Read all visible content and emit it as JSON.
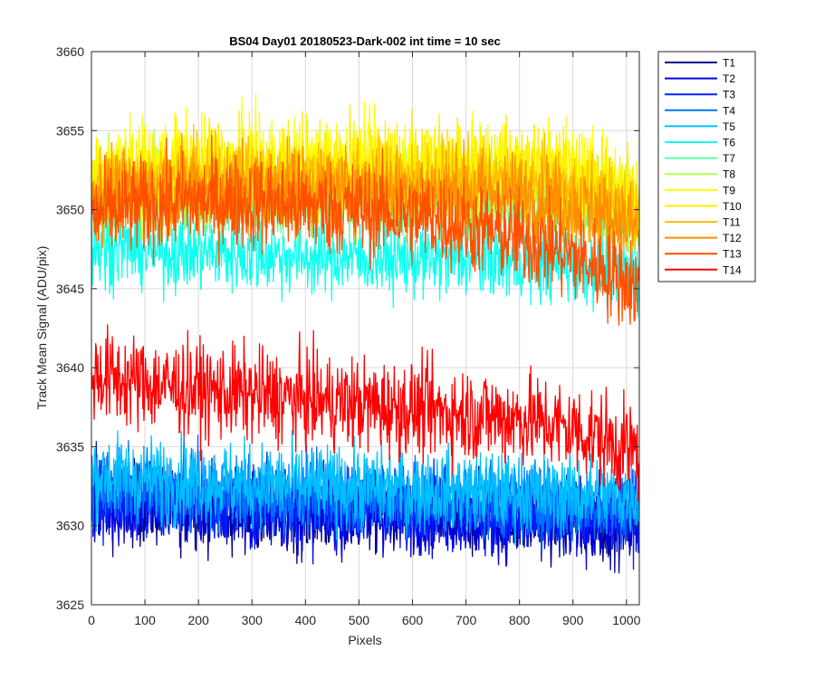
{
  "chart_data": {
    "type": "line",
    "title": "BS04 Day01 20180523-Dark-002 int time = 10 sec",
    "xlabel": "Pixels",
    "ylabel": "Track Mean Signal (ADU/pix)",
    "xlim": [
      0,
      1024
    ],
    "ylim": [
      3625,
      3660
    ],
    "xticks": [
      0,
      100,
      200,
      300,
      400,
      500,
      600,
      700,
      800,
      900,
      1000
    ],
    "yticks": [
      3625,
      3630,
      3635,
      3640,
      3645,
      3650,
      3655,
      3660
    ],
    "grid": true,
    "legend_position": "outside-top-right",
    "x_points": [
      0,
      50,
      100,
      150,
      200,
      250,
      300,
      350,
      400,
      450,
      500,
      550,
      600,
      650,
      700,
      750,
      800,
      850,
      900,
      950,
      1000,
      1024
    ],
    "series": [
      {
        "name": "T1",
        "color": "#00008F",
        "mean": [
          3631.5,
          3631.4,
          3631.3,
          3631.2,
          3631.2,
          3631.0,
          3630.9,
          3630.9,
          3630.8,
          3630.8,
          3630.8,
          3630.8,
          3630.7,
          3630.6,
          3630.6,
          3630.5,
          3630.5,
          3630.4,
          3630.3,
          3630.3,
          3630.2,
          3630.2
        ],
        "noise": 1.3
      },
      {
        "name": "T2",
        "color": "#0000DF",
        "mean": [
          3631.2,
          3631.1,
          3631.1,
          3631.0,
          3631.0,
          3630.9,
          3630.8,
          3630.8,
          3630.7,
          3630.7,
          3630.7,
          3630.6,
          3630.6,
          3630.5,
          3630.5,
          3630.4,
          3630.3,
          3630.3,
          3630.2,
          3630.2,
          3630.1,
          3630.1
        ],
        "noise": 1.2
      },
      {
        "name": "T3",
        "color": "#0020FF",
        "mean": [
          3632.0,
          3631.9,
          3631.8,
          3631.7,
          3631.6,
          3631.6,
          3631.5,
          3631.4,
          3631.4,
          3631.3,
          3631.3,
          3631.2,
          3631.2,
          3631.1,
          3631.1,
          3631.0,
          3631.0,
          3630.9,
          3630.9,
          3630.8,
          3630.8,
          3630.8
        ],
        "noise": 1.2
      },
      {
        "name": "T4",
        "color": "#0070FF",
        "mean": [
          3632.6,
          3632.5,
          3632.4,
          3632.3,
          3632.2,
          3632.1,
          3632.0,
          3632.0,
          3631.9,
          3631.8,
          3631.8,
          3631.7,
          3631.7,
          3631.6,
          3631.6,
          3631.5,
          3631.5,
          3631.4,
          3631.3,
          3631.3,
          3631.2,
          3631.2
        ],
        "noise": 1.2
      },
      {
        "name": "T5",
        "color": "#00BFFF",
        "mean": [
          3633.2,
          3633.1,
          3633.0,
          3632.9,
          3632.8,
          3632.7,
          3632.6,
          3632.6,
          3632.5,
          3632.5,
          3632.4,
          3632.4,
          3632.3,
          3632.3,
          3632.2,
          3632.2,
          3632.1,
          3632.0,
          3632.0,
          3631.9,
          3631.9,
          3631.8
        ],
        "noise": 1.3
      },
      {
        "name": "T6",
        "color": "#10FFEF",
        "mean": [
          3647.6,
          3647.5,
          3647.4,
          3647.3,
          3647.3,
          3647.2,
          3647.1,
          3647.1,
          3647.0,
          3647.0,
          3647.0,
          3646.9,
          3646.9,
          3646.8,
          3646.8,
          3646.8,
          3646.7,
          3646.6,
          3646.5,
          3646.3,
          3646.0,
          3645.8
        ],
        "noise": 1.2
      },
      {
        "name": "T7",
        "color": "#60FF9F",
        "mean": [
          3650.5,
          3650.6,
          3650.6,
          3650.7,
          3650.7,
          3650.7,
          3650.7,
          3650.7,
          3650.7,
          3650.6,
          3650.6,
          3650.6,
          3650.6,
          3650.6,
          3650.6,
          3650.5,
          3650.5,
          3650.3,
          3650.1,
          3649.8,
          3649.4,
          3649.2
        ],
        "noise": 1.2
      },
      {
        "name": "T8",
        "color": "#AFFF50",
        "mean": [
          3651.2,
          3651.3,
          3651.4,
          3651.5,
          3651.5,
          3651.5,
          3651.5,
          3651.5,
          3651.4,
          3651.4,
          3651.4,
          3651.3,
          3651.3,
          3651.3,
          3651.3,
          3651.3,
          3651.2,
          3651.0,
          3650.8,
          3650.5,
          3650.0,
          3649.8
        ],
        "noise": 1.3
      },
      {
        "name": "T9",
        "color": "#FFFF00",
        "mean": [
          3652.2,
          3652.4,
          3652.6,
          3652.8,
          3652.9,
          3652.9,
          3652.9,
          3652.9,
          3652.9,
          3652.8,
          3652.8,
          3652.8,
          3652.8,
          3652.8,
          3652.8,
          3652.8,
          3652.7,
          3652.5,
          3652.2,
          3651.8,
          3651.2,
          3650.8
        ],
        "noise": 1.5
      },
      {
        "name": "T10",
        "color": "#FFEF00",
        "mean": [
          3652.0,
          3652.2,
          3652.4,
          3652.6,
          3652.7,
          3652.7,
          3652.7,
          3652.7,
          3652.7,
          3652.6,
          3652.6,
          3652.6,
          3652.6,
          3652.6,
          3652.6,
          3652.6,
          3652.5,
          3652.3,
          3652.0,
          3651.5,
          3650.9,
          3650.5
        ],
        "noise": 1.5
      },
      {
        "name": "T11",
        "color": "#FFBF00",
        "mean": [
          3651.3,
          3651.5,
          3651.7,
          3651.8,
          3651.9,
          3651.9,
          3651.9,
          3651.9,
          3651.9,
          3651.8,
          3651.8,
          3651.8,
          3651.8,
          3651.8,
          3651.7,
          3651.7,
          3651.6,
          3651.4,
          3651.1,
          3650.6,
          3650.0,
          3649.6
        ],
        "noise": 1.3
      },
      {
        "name": "T12",
        "color": "#FF8F00",
        "mean": [
          3650.8,
          3651.0,
          3651.2,
          3651.3,
          3651.4,
          3651.4,
          3651.4,
          3651.3,
          3651.3,
          3651.2,
          3651.2,
          3651.2,
          3651.2,
          3651.1,
          3651.1,
          3651.0,
          3650.9,
          3650.6,
          3650.2,
          3649.7,
          3649.1,
          3648.7
        ],
        "noise": 1.4
      },
      {
        "name": "T13",
        "color": "#FF5000",
        "mean": [
          3649.6,
          3650.0,
          3650.2,
          3650.4,
          3650.5,
          3650.5,
          3650.4,
          3650.3,
          3650.2,
          3650.1,
          3650.0,
          3649.8,
          3649.6,
          3649.4,
          3649.0,
          3648.6,
          3648.2,
          3647.7,
          3647.0,
          3646.3,
          3645.5,
          3645.0
        ],
        "noise": 1.5
      },
      {
        "name": "T14",
        "color": "#FF0000",
        "mean": [
          3639.6,
          3639.3,
          3639.0,
          3638.8,
          3638.6,
          3638.4,
          3638.3,
          3638.1,
          3638.0,
          3637.8,
          3637.7,
          3637.5,
          3637.4,
          3637.2,
          3637.1,
          3636.9,
          3636.8,
          3636.5,
          3636.1,
          3635.6,
          3634.9,
          3634.6
        ],
        "noise": 1.5
      }
    ]
  }
}
